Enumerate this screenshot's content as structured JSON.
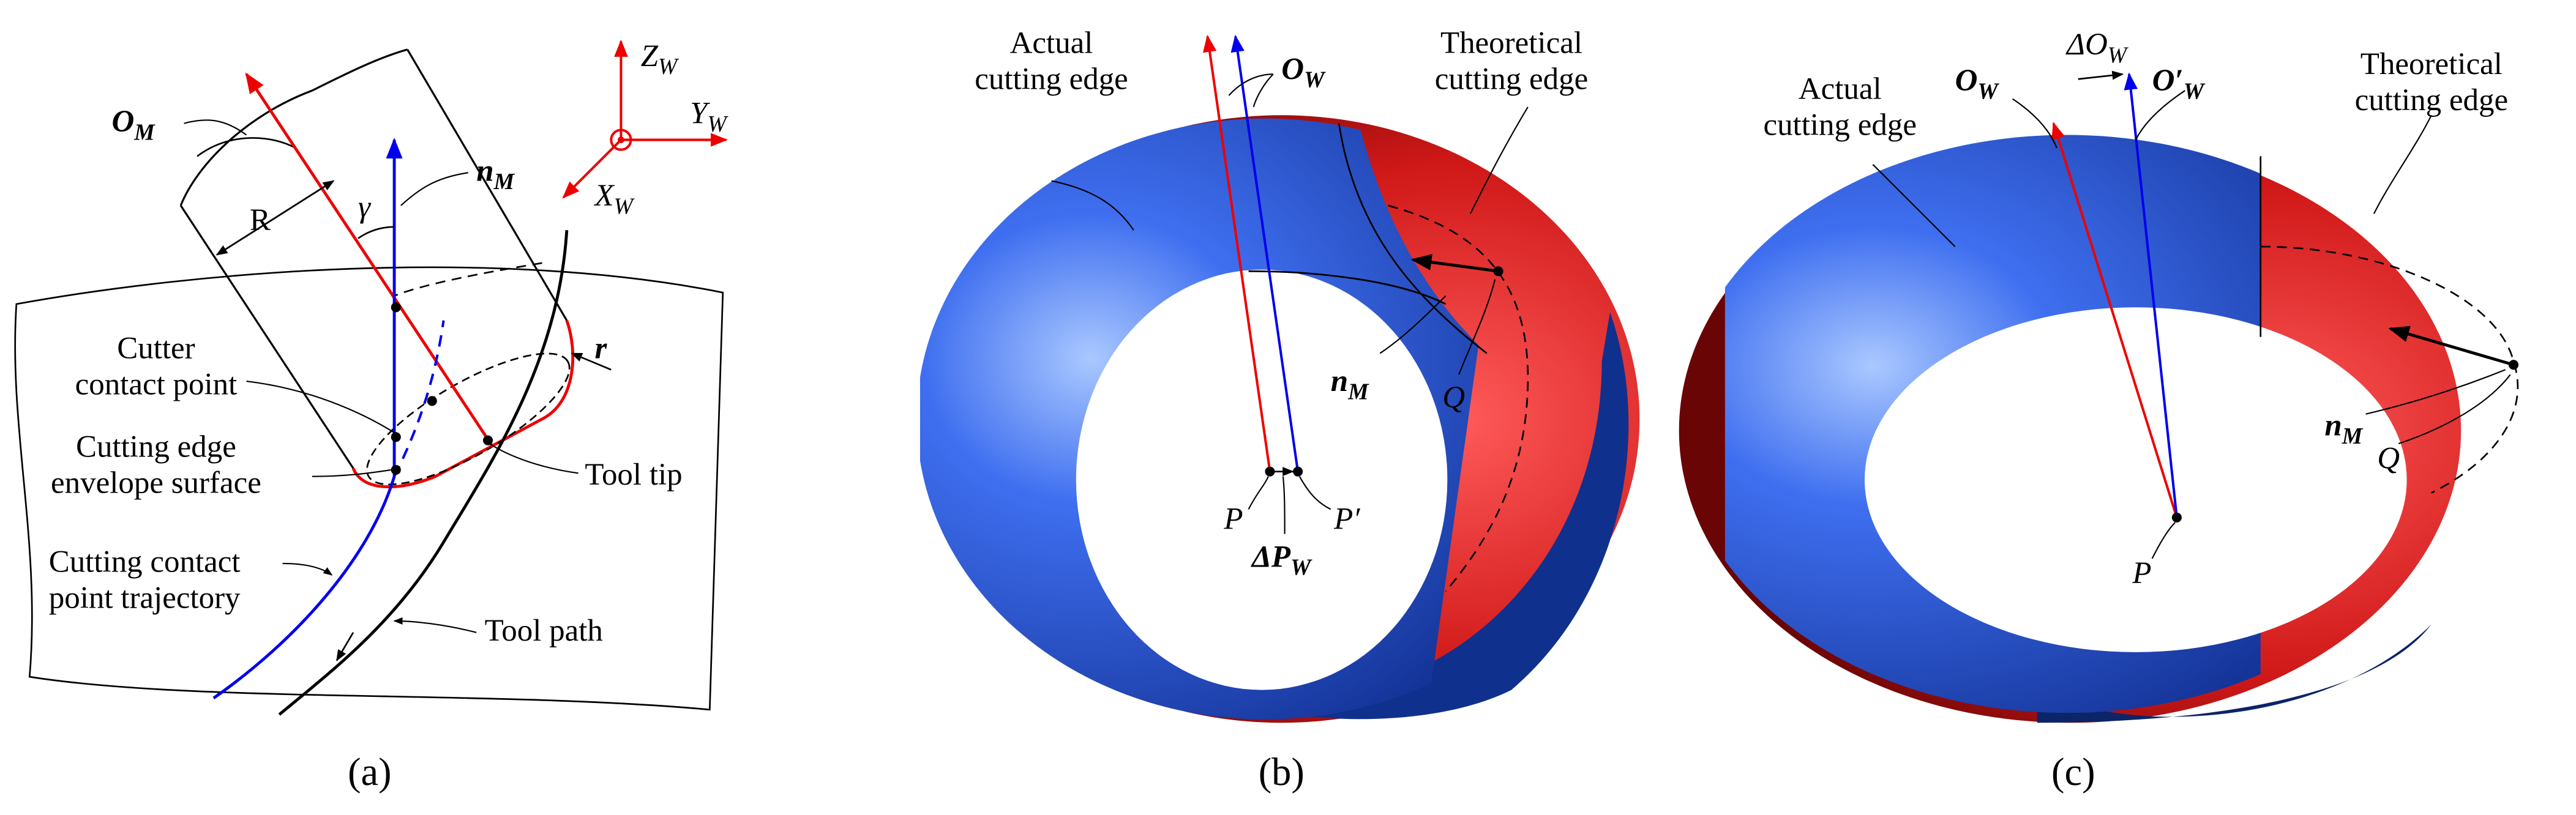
{
  "panel_a": {
    "caption": "(a)",
    "o_m": {
      "base": "O",
      "sub": "M"
    },
    "n_m": {
      "base": "n",
      "sub": "M"
    },
    "r_big": "R",
    "gamma": "γ",
    "r_small": "r",
    "z_w": {
      "base": "Z",
      "sub": "W"
    },
    "y_w": {
      "base": "Y",
      "sub": "W"
    },
    "x_w": {
      "base": "X",
      "sub": "W"
    },
    "cutter_contact_point": [
      "Cutter",
      "contact point"
    ],
    "envelope_surface": [
      "Cutting edge",
      "envelope surface"
    ],
    "tool_tip": "Tool tip",
    "trajectory": [
      "Cutting contact",
      "point trajectory"
    ],
    "tool_path": "Tool path"
  },
  "panel_b": {
    "caption": "(b)",
    "actual_edge": [
      "Actual",
      "cutting edge"
    ],
    "o_w": {
      "base": "O",
      "sub": "W"
    },
    "theoretical_edge": [
      "Theoretical",
      "cutting edge"
    ],
    "n_m": {
      "base": "n",
      "sub": "M"
    },
    "q": "Q",
    "p": "P",
    "p_prime": "P′",
    "delta_p_w": {
      "base": "ΔP",
      "sub": "W"
    }
  },
  "panel_c": {
    "caption": "(c)",
    "actual_edge": [
      "Actual",
      "cutting edge"
    ],
    "delta_o_w": {
      "base": "ΔO",
      "sub": "W"
    },
    "o_w": {
      "base": "O",
      "sub": "W"
    },
    "o_prime_w": {
      "base": "O′",
      "sub": "W"
    },
    "theoretical_edge": [
      "Theoretical",
      "cutting edge"
    ],
    "n_m": {
      "base": "n",
      "sub": "M"
    },
    "q": "Q",
    "p": "P"
  }
}
